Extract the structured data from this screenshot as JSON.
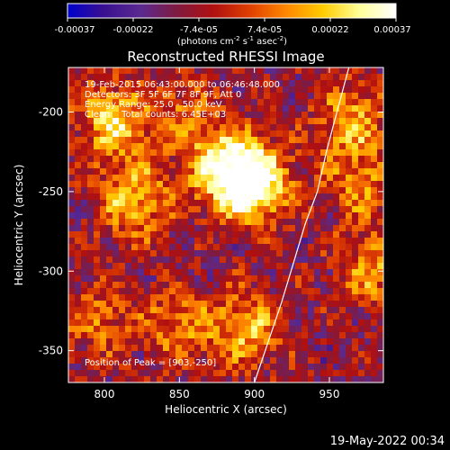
{
  "chart_data": {
    "type": "heatmap",
    "title": "Reconstructed RHESSI Image",
    "xlabel": "Heliocentric X (arcsec)",
    "ylabel": "Heliocentric Y (arcsec)",
    "xlim": [
      776,
      986
    ],
    "ylim": [
      -370,
      -172
    ],
    "x_ticks": [
      800,
      850,
      900,
      950
    ],
    "y_ticks": [
      -200,
      -250,
      -300,
      -350
    ],
    "grid": false,
    "colorbar": {
      "ticks": [
        "-0.00037",
        "-0.00022",
        "-7.4e-05",
        "7.4e-05",
        "0.00022",
        "0.00037"
      ],
      "label_main": "(photons cm",
      "label_sup1": "-2",
      "label_mid1": " s",
      "label_sup2": "-1",
      "label_mid2": " asec",
      "label_sup3": "-2",
      "label_end": ")",
      "range": [
        -0.00037,
        0.00037
      ],
      "colormap": [
        "#0000cc",
        "#3a1090",
        "#5a2a90",
        "#801a40",
        "#b01010",
        "#e04000",
        "#ff8800",
        "#ffcc00",
        "#ffff99",
        "#ffffff"
      ]
    },
    "annotations": [
      "19-Feb-2015 06:43:00.000 to 06:46:48.000",
      "Detectors: 3F 5F 6F 7F 8F 9F, Att 0",
      "Energy Range: 25.0 - 50.0 keV",
      "Clean    Total counts: 6.45E+03"
    ],
    "peak_label": "Position of Peak = [903,-250]",
    "peak": [
      903,
      -250
    ],
    "limb_curve": {
      "x": [
        900,
        918,
        934,
        942,
        948,
        955,
        963
      ],
      "y": [
        -370,
        -320,
        -270,
        -250,
        -225,
        -200,
        -172
      ]
    },
    "bright_sources": [
      {
        "x": 900,
        "y": -245,
        "intensity": 1.0
      },
      {
        "x": 880,
        "y": -235,
        "intensity": 0.85
      },
      {
        "x": 805,
        "y": -205,
        "intensity": 0.7
      },
      {
        "x": 820,
        "y": -255,
        "intensity": 0.65
      },
      {
        "x": 895,
        "y": -335,
        "intensity": 0.6
      },
      {
        "x": 850,
        "y": -335,
        "intensity": 0.45
      },
      {
        "x": 965,
        "y": -205,
        "intensity": 0.55
      },
      {
        "x": 980,
        "y": -300,
        "intensity": 0.5
      },
      {
        "x": 970,
        "y": -245,
        "intensity": 0.45
      },
      {
        "x": 795,
        "y": -330,
        "intensity": 0.4
      },
      {
        "x": 850,
        "y": -200,
        "intensity": 0.35
      }
    ]
  },
  "footer": {
    "timestamp": "19-May-2022 00:34"
  }
}
